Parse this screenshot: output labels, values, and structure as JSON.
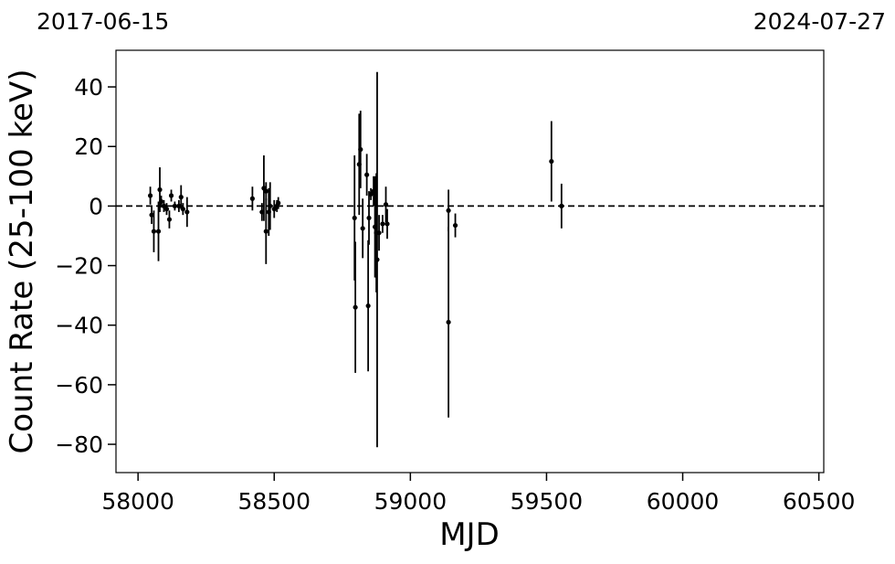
{
  "chart_data": {
    "type": "errorbar",
    "xlabel": "MJD",
    "ylabel": "Count Rate (25-100 keV)",
    "top_labels": [
      "2017-06-15",
      "2024-07-27"
    ],
    "xlim": [
      57919,
      60518
    ],
    "ylim": [
      -89.5,
      52.3
    ],
    "xticks": [
      58000,
      58500,
      59000,
      59500,
      60000,
      60500
    ],
    "yticks": [
      {
        "value": -80,
        "label": "−80"
      },
      {
        "value": -60,
        "label": "−60"
      },
      {
        "value": -40,
        "label": "−40"
      },
      {
        "value": -20,
        "label": "−20"
      },
      0,
      20,
      40
    ],
    "hline": 0,
    "color": "#000000",
    "x": [
      58045,
      58050,
      58058,
      58075,
      58080,
      58085,
      58095,
      58105,
      58115,
      58122,
      58135,
      58150,
      58158,
      58165,
      58180,
      58420,
      58455,
      58462,
      58470,
      58470,
      58480,
      58485,
      58500,
      58510,
      58515,
      58795,
      58798,
      58812,
      58817,
      58825,
      58840,
      58845,
      58848,
      58855,
      58865,
      58870,
      58875,
      58878,
      58885,
      58898,
      58910,
      58915,
      59140,
      59140,
      59165,
      59518,
      59555
    ],
    "values": [
      3.5,
      -3,
      -8.5,
      -8.5,
      5.5,
      1.5,
      0,
      -1,
      -4.5,
      3.5,
      0,
      0,
      3,
      -1,
      -2,
      2.5,
      -2,
      6,
      5,
      -8.5,
      -2,
      0,
      -1,
      0,
      1,
      -4,
      -34,
      14,
      19,
      -7.5,
      10.5,
      -33.5,
      -4,
      4,
      5,
      -7,
      -9,
      -18,
      -9,
      -6,
      0.5,
      -6,
      -1.5,
      -39,
      -6.5,
      15,
      0
    ],
    "errors": [
      3,
      3,
      7,
      10,
      7.5,
      2,
      2,
      2,
      3,
      2,
      1.5,
      2,
      4,
      2,
      5,
      4,
      3,
      11,
      3,
      11,
      8,
      8,
      3,
      2,
      2,
      21,
      22,
      17,
      13,
      10,
      7,
      22,
      9,
      2,
      5,
      17,
      20,
      63,
      6,
      3,
      6,
      5,
      7,
      32,
      4,
      13.5,
      7.5
    ]
  }
}
